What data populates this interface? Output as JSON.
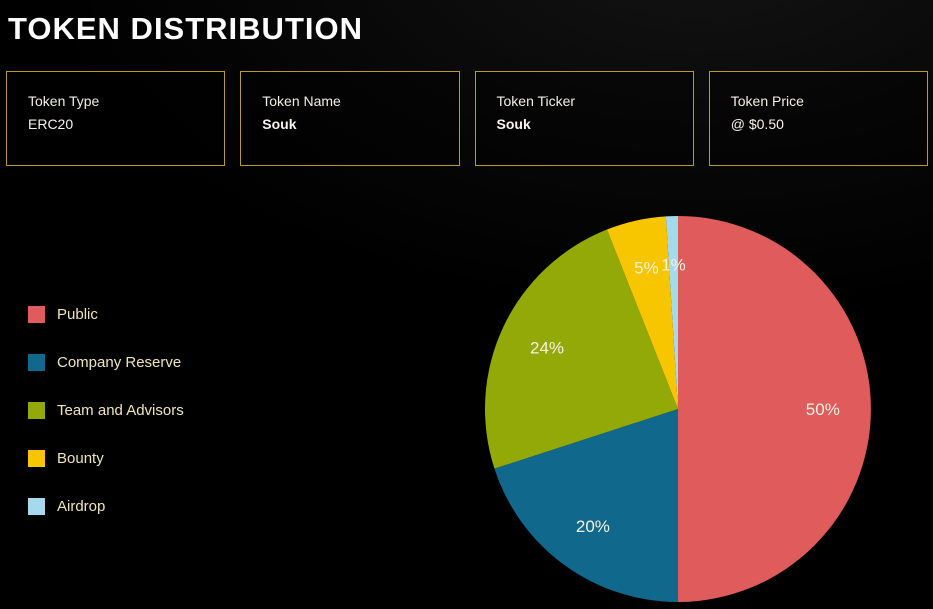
{
  "page": {
    "title": "TOKEN DISTRIBUTION"
  },
  "info_cards": [
    {
      "label": "Token Type",
      "value": "ERC20"
    },
    {
      "label": "Token Name",
      "value": "Souk"
    },
    {
      "label": "Token Ticker",
      "value": "Souk"
    },
    {
      "label": "Token Price",
      "value": "@ $0.50"
    }
  ],
  "chart_data": {
    "type": "pie",
    "title": "Token Distribution",
    "categories": [
      "Public",
      "Company Reserve",
      "Team and Advisors",
      "Bounty",
      "Airdrop"
    ],
    "values": [
      50,
      20,
      24,
      5,
      1
    ],
    "labels": [
      "50%",
      "20%",
      "24%",
      "5%",
      "1%"
    ],
    "colors": [
      "#df5b5c",
      "#10688c",
      "#93a907",
      "#f7c600",
      "#a6d9ee"
    ],
    "start_angle_deg": 0,
    "direction": "clockwise",
    "legend_position": "left",
    "label_color": "#f7f2df"
  },
  "theme": {
    "background": "#000000",
    "card_border": "#b89d1e",
    "legend_text": "#f0e5ba",
    "title_text": "#fdfdfd"
  }
}
